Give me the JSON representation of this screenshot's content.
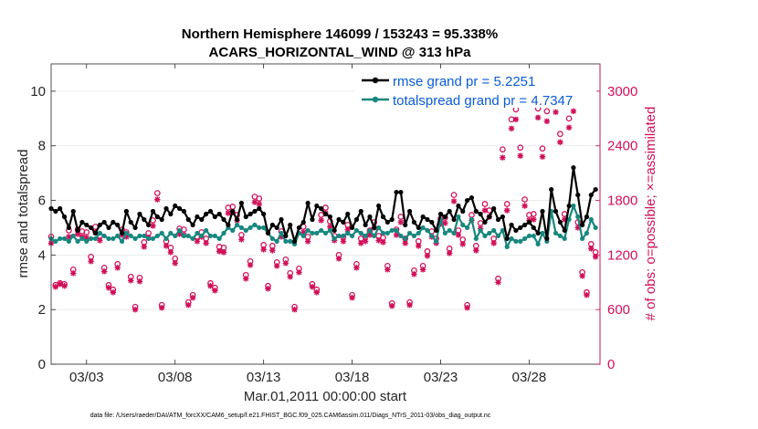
{
  "chart_data": {
    "type": "line",
    "title": "Northern Hemisphere 146099 / 153243 = 95.338%",
    "subtitle": "ACARS_HORIZONTAL_WIND @ 313 hPa",
    "xlabel": "Mar.01,2011 00:00:00 start",
    "ylabel_left": "rmse and totalspread",
    "ylabel_right": "# of obs: o=possible; ×=assimilated",
    "x_tick_labels": [
      "03/03",
      "03/08",
      "03/13",
      "03/18",
      "03/23",
      "03/28"
    ],
    "x_tick_days": [
      2,
      7,
      12,
      17,
      22,
      27
    ],
    "xlim_days": [
      0,
      31
    ],
    "ylim_left": [
      0,
      11
    ],
    "y_ticks_left": [
      "0",
      "2",
      "4",
      "6",
      "8",
      "10"
    ],
    "ylim_right": [
      0,
      3300
    ],
    "y_ticks_right": [
      "0",
      "600",
      "1200",
      "1800",
      "2400",
      "3000"
    ],
    "x_days": [
      0,
      0.25,
      0.5,
      0.75,
      1,
      1.25,
      1.5,
      1.75,
      2,
      2.25,
      2.5,
      2.75,
      3,
      3.25,
      3.5,
      3.75,
      4,
      4.25,
      4.5,
      4.75,
      5,
      5.25,
      5.5,
      5.75,
      6,
      6.25,
      6.5,
      6.75,
      7,
      7.25,
      7.5,
      7.75,
      8,
      8.25,
      8.5,
      8.75,
      9,
      9.25,
      9.5,
      9.75,
      10,
      10.25,
      10.5,
      10.75,
      11,
      11.25,
      11.5,
      11.75,
      12,
      12.25,
      12.5,
      12.75,
      13,
      13.25,
      13.5,
      13.75,
      14,
      14.25,
      14.5,
      14.75,
      15,
      15.25,
      15.5,
      15.75,
      16,
      16.25,
      16.5,
      16.75,
      17,
      17.25,
      17.5,
      17.75,
      18,
      18.25,
      18.5,
      18.75,
      19,
      19.25,
      19.5,
      19.75,
      20,
      20.25,
      20.5,
      20.75,
      21,
      21.25,
      21.5,
      21.75,
      22,
      22.25,
      22.5,
      22.75,
      23,
      23.25,
      23.5,
      23.75,
      24,
      24.25,
      24.5,
      24.75,
      25,
      25.25,
      25.5,
      25.75,
      26,
      26.25,
      26.5,
      26.75,
      27,
      27.25,
      27.5,
      27.75,
      28,
      28.25,
      28.5,
      28.75,
      29,
      29.25,
      29.5,
      29.75,
      30,
      30.25,
      30.5,
      30.75
    ],
    "series": [
      {
        "name": "rmse grand pr = 5.2251",
        "color": "#000000",
        "marker": "dot",
        "values": [
          5.7,
          5.6,
          5.7,
          5.4,
          5.0,
          5.6,
          4.9,
          5.2,
          5.1,
          5.0,
          4.8,
          5.1,
          5.2,
          5.0,
          5.2,
          5.1,
          4.8,
          5.6,
          5.2,
          5.0,
          5.5,
          5.3,
          5.1,
          5.6,
          5.4,
          5.3,
          5.7,
          5.5,
          5.8,
          5.7,
          5.6,
          5.3,
          5.1,
          5.4,
          5.3,
          5.5,
          5.6,
          5.4,
          5.5,
          5.3,
          5.1,
          5.6,
          5.3,
          5.9,
          5.4,
          5.5,
          5.6,
          5.7,
          5.5,
          4.8,
          5.1,
          5.0,
          5.3,
          4.7,
          5.1,
          4.5,
          5.0,
          5.2,
          5.9,
          5.3,
          5.8,
          5.7,
          5.5,
          5.4,
          4.9,
          5.3,
          5.2,
          5.5,
          5.0,
          5.3,
          5.6,
          5.1,
          5.4,
          5.0,
          5.8,
          5.4,
          5.2,
          5.3,
          6.3,
          6.3,
          5.1,
          5.6,
          5.2,
          5.0,
          5.4,
          5.3,
          5.2,
          4.9,
          5.5,
          5.4,
          5.6,
          5.3,
          5.8,
          5.6,
          6.0,
          6.1,
          5.6,
          5.5,
          5.2,
          5.4,
          5.7,
          5.3,
          5.4,
          4.6,
          5.1,
          4.9,
          5.0,
          5.1,
          5.2,
          5.0,
          4.8,
          5.6,
          4.6,
          6.4,
          5.6,
          5.2,
          4.9,
          5.8,
          7.2,
          6.2,
          5.1,
          5.4,
          6.2,
          6.4
        ]
      },
      {
        "name": "totalspread grand pr = 4.7347",
        "color": "#17877f",
        "marker": "dot",
        "values": [
          4.6,
          4.5,
          4.6,
          4.6,
          4.5,
          4.7,
          4.5,
          4.6,
          4.5,
          4.6,
          4.6,
          4.8,
          4.7,
          4.6,
          4.6,
          4.7,
          4.5,
          4.8,
          4.7,
          4.6,
          4.7,
          4.7,
          4.6,
          4.6,
          4.7,
          4.8,
          4.6,
          4.8,
          4.7,
          4.9,
          4.7,
          4.7,
          4.6,
          4.8,
          4.7,
          4.9,
          4.7,
          4.7,
          4.6,
          4.8,
          5.0,
          4.9,
          5.1,
          5.0,
          4.9,
          5.0,
          5.1,
          5.0,
          5.0,
          4.8,
          4.6,
          4.5,
          4.8,
          4.5,
          4.5,
          4.4,
          4.8,
          4.7,
          4.9,
          4.8,
          4.8,
          4.9,
          4.8,
          4.9,
          4.6,
          4.7,
          4.7,
          4.8,
          4.7,
          4.9,
          4.8,
          4.7,
          4.9,
          4.7,
          5.0,
          4.8,
          4.8,
          4.9,
          4.9,
          4.7,
          4.6,
          4.8,
          4.7,
          4.8,
          5.0,
          4.9,
          4.7,
          4.5,
          5.3,
          4.8,
          4.9,
          4.8,
          5.4,
          5.1,
          5.0,
          5.3,
          4.6,
          4.9,
          4.7,
          4.8,
          4.9,
          4.7,
          4.9,
          4.3,
          4.6,
          4.5,
          4.5,
          4.6,
          4.7,
          4.7,
          4.4,
          4.8,
          4.5,
          5.6,
          4.8,
          4.7,
          4.6,
          5.3,
          5.8,
          5.4,
          4.6,
          4.8,
          5.3,
          5.0
        ]
      }
    ],
    "obs_possible": [
      1400,
      870,
      890,
      880,
      1470,
      1040,
      1480,
      1460,
      1450,
      1180,
      1510,
      1410,
      1060,
      870,
      820,
      1100,
      1480,
      1450,
      960,
      630,
      950,
      1340,
      1440,
      1580,
      1880,
      650,
      1350,
      1280,
      1160,
      1490,
      1480,
      680,
      760,
      1400,
      1450,
      1380,
      890,
      840,
      1290,
      1280,
      1720,
      1730,
      1640,
      1420,
      980,
      1130,
      1840,
      1820,
      1310,
      860,
      1300,
      1120,
      1460,
      1150,
      1000,
      630,
      1050,
      1510,
      1400,
      880,
      820,
      1640,
      1720,
      1570,
      1410,
      1200,
      1400,
      1530,
      760,
      1100,
      1380,
      1400,
      1470,
      1560,
      1410,
      1390,
      1080,
      670,
      1480,
      1620,
      1380,
      680,
      1030,
      1350,
      1080,
      1240,
      1460,
      1380,
      1600,
      1610,
      1270,
      1860,
      1470,
      1370,
      650,
      1640,
      1300,
      1550,
      1760,
      1690,
      1380,
      940,
      2360,
      1760,
      2690,
      2800,
      2380,
      1810,
      1640,
      1650,
      2810,
      2370,
      2780,
      3050,
      2880,
      2530,
      1650,
      2700,
      2890,
      1560,
      1010,
      790,
      1320,
      1230,
      1600,
      1560,
      1450,
      1290,
      1130,
      1280,
      1460,
      1540,
      930,
      1430,
      1640,
      0
    ],
    "obs_assimilated": [
      1330,
      850,
      880,
      860,
      1400,
      1000,
      1430,
      1400,
      1390,
      1130,
      1450,
      1360,
      1020,
      840,
      790,
      1060,
      1420,
      1400,
      920,
      600,
      910,
      1290,
      1390,
      1520,
      1810,
      620,
      1300,
      1230,
      1110,
      1430,
      1420,
      650,
      730,
      1350,
      1400,
      1330,
      860,
      810,
      1240,
      1230,
      1660,
      1670,
      1580,
      1370,
      940,
      1090,
      1780,
      1760,
      1260,
      830,
      1250,
      1080,
      1400,
      1110,
      960,
      600,
      1010,
      1450,
      1350,
      850,
      790,
      1580,
      1660,
      1510,
      1360,
      1160,
      1350,
      1480,
      730,
      1060,
      1330,
      1350,
      1420,
      1500,
      1360,
      1340,
      1040,
      640,
      1420,
      1560,
      1330,
      650,
      990,
      1300,
      1040,
      1190,
      1400,
      1330,
      1540,
      1550,
      1220,
      1790,
      1420,
      1320,
      620,
      1580,
      1250,
      1490,
      1690,
      1620,
      1330,
      900,
      2270,
      1690,
      2590,
      2690,
      2290,
      1740,
      1580,
      1590,
      2710,
      2280,
      2670,
      2940,
      2770,
      2440,
      1590,
      2600,
      2780,
      1500,
      970,
      760,
      1270,
      1180,
      1540,
      1500,
      1400,
      1240,
      1090,
      1230,
      1400,
      1480,
      890,
      1380,
      1580,
      0
    ]
  },
  "footer": "data file: /Users/raeder/DAI/ATM_forcXX/CAM6_setup/f.e21.FHIST_BGC.f09_025.CAM6assim.011/Diags_NTrS_2011-03/obs_diag_output.nc",
  "colors": {
    "rmse": "#000000",
    "spread": "#17877f",
    "obs": "#d1105a",
    "legend_text": "#0a5cd6"
  }
}
